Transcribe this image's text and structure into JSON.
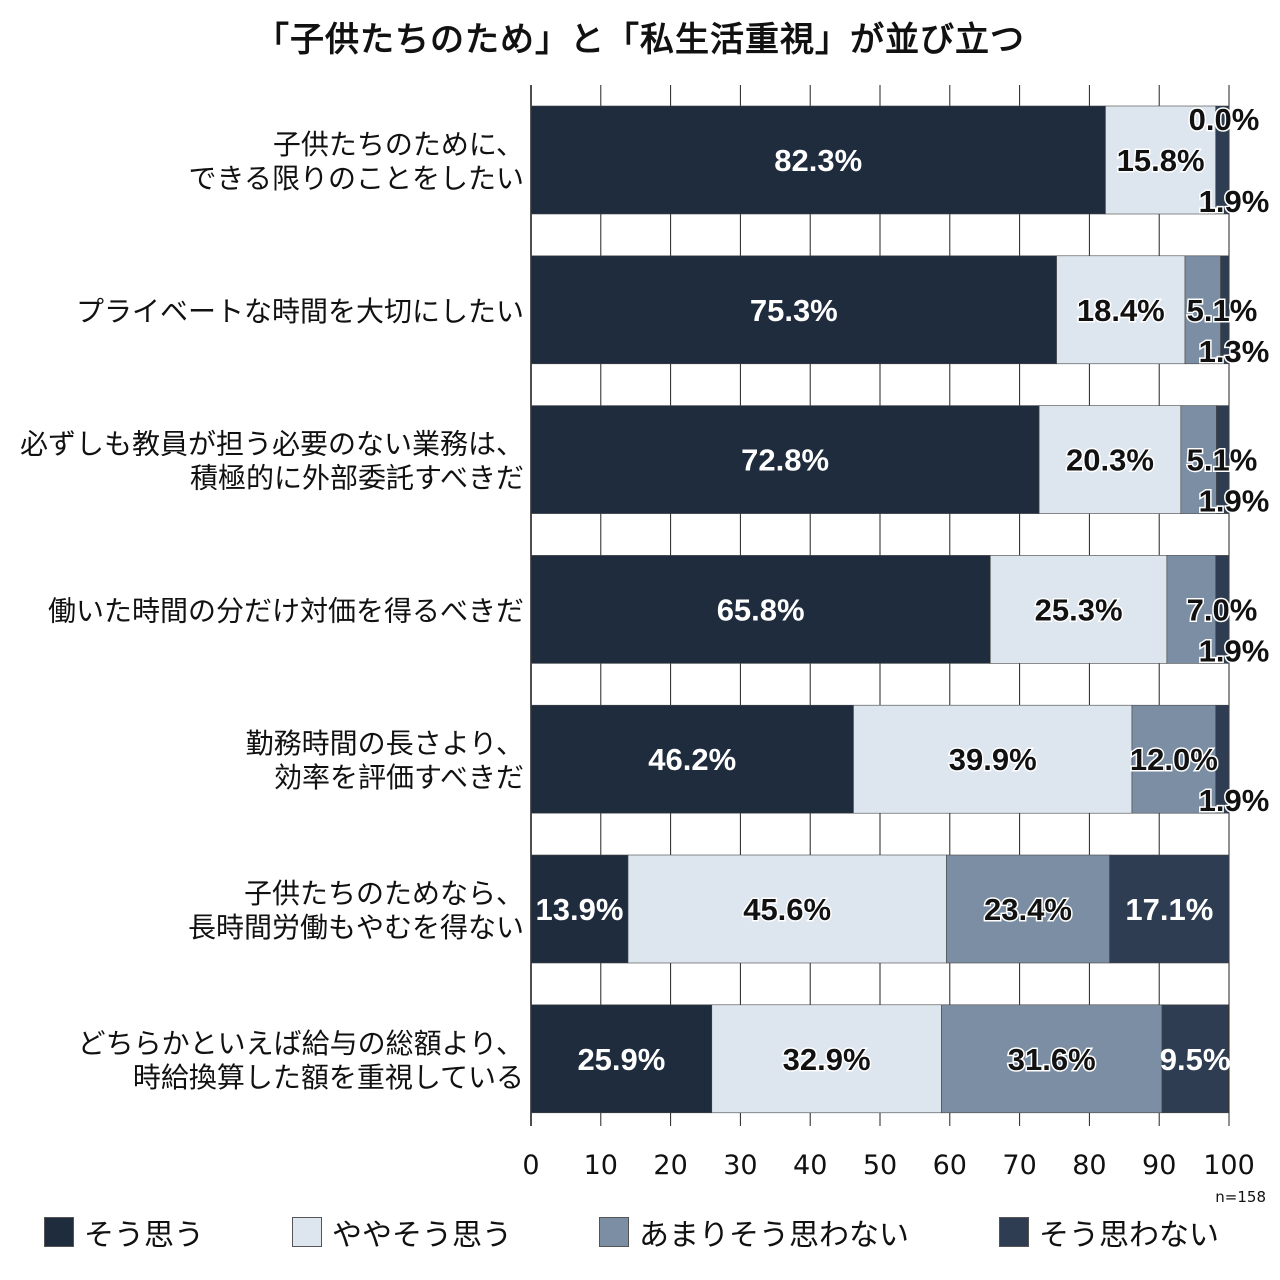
{
  "chart_data": {
    "type": "bar",
    "orientation": "horizontal-stacked",
    "title": "「子供たちのため」と「私生活重視」が並び立つ",
    "note": "n=158",
    "categories": [
      [
        "子供たちのために、",
        "できる限りのことをしたい"
      ],
      [
        "プライベートな時間を大切にしたい"
      ],
      [
        "必ずしも教員が担う必要のない業務は、",
        "積極的に外部委託すべきだ"
      ],
      [
        "働いた時間の分だけ対価を得るべきだ"
      ],
      [
        "勤務時間の長さより、",
        "効率を評価すべきだ"
      ],
      [
        "子供たちのためなら、",
        "長時間労働もやむを得ない"
      ],
      [
        "どちらかといえば給与の総額より、",
        "時給換算した額を重視している"
      ]
    ],
    "series": [
      {
        "name": "そう思う",
        "color": "#1f2c3e",
        "values": [
          82.3,
          75.3,
          72.8,
          65.8,
          46.2,
          13.9,
          25.9
        ],
        "labels": [
          "82.3%",
          "75.3%",
          "72.8%",
          "65.8%",
          "46.2%",
          "13.9%",
          "25.9%"
        ]
      },
      {
        "name": "ややそう思う",
        "color": "#dde6ef",
        "values": [
          15.8,
          18.4,
          20.3,
          25.3,
          39.9,
          45.6,
          32.9
        ],
        "labels": [
          "15.8%",
          "18.4%",
          "20.3%",
          "25.3%",
          "39.9%",
          "45.6%",
          "32.9%"
        ]
      },
      {
        "name": "あまりそう思わない",
        "color": "#7b8ea3",
        "values": [
          0.0,
          5.1,
          5.1,
          7.0,
          12.0,
          23.4,
          31.6
        ],
        "labels": [
          "0.0%",
          "5.1%",
          "5.1%",
          "7.0%",
          "12.0%",
          "23.4%",
          "31.6%"
        ]
      },
      {
        "name": "そう思わない",
        "color": "#2e3d52",
        "values": [
          1.9,
          1.3,
          1.9,
          1.9,
          1.9,
          17.1,
          9.5
        ],
        "labels": [
          "1.9%",
          "1.3%",
          "1.9%",
          "1.9%",
          "1.9%",
          "17.1%",
          "9.5%"
        ]
      }
    ],
    "xlim": [
      0,
      100
    ],
    "xticks": [
      "0",
      "10",
      "20",
      "30",
      "40",
      "50",
      "60",
      "70",
      "80",
      "90",
      "100"
    ],
    "grid": true,
    "legend_position": "bottom"
  }
}
